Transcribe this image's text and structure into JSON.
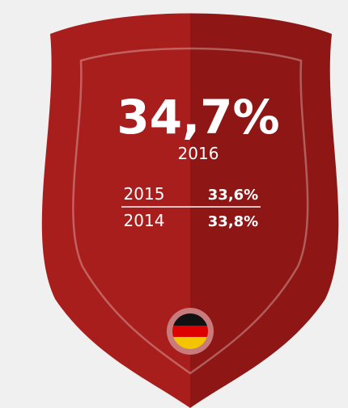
{
  "headline": {
    "value": "34,7%",
    "year": "2016"
  },
  "rows": [
    {
      "year": "2015",
      "value": "33,6%"
    },
    {
      "year": "2014",
      "value": "33,8%"
    }
  ]
}
